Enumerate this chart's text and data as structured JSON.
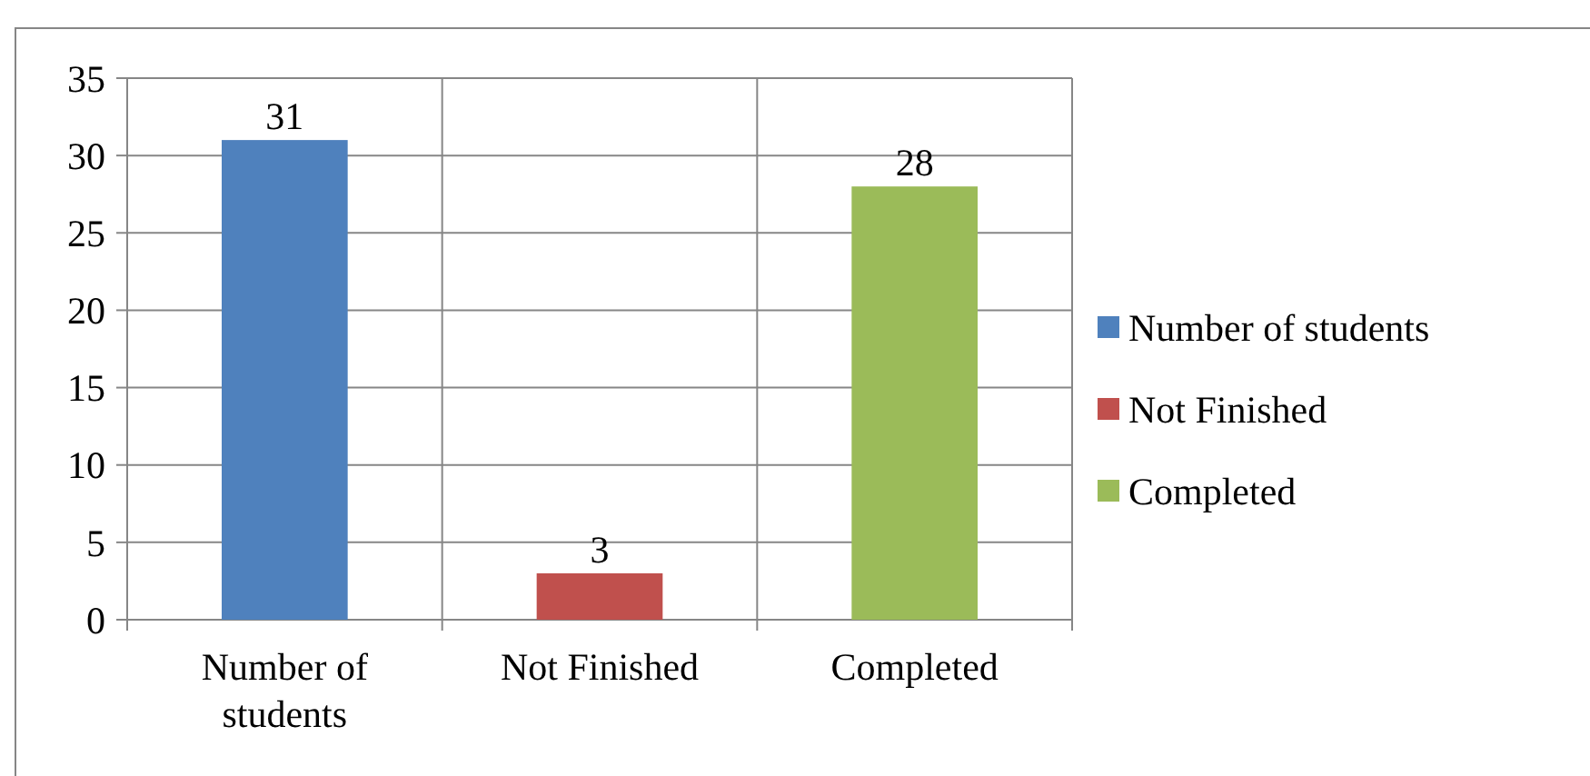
{
  "chart_data": {
    "type": "bar",
    "categories": [
      "Number of students",
      "Not Finished",
      "Completed"
    ],
    "series": [
      {
        "name": "Number of students",
        "color": "#4f81bd",
        "values": [
          31,
          null,
          null
        ]
      },
      {
        "name": "Not Finished",
        "color": "#c0504d",
        "values": [
          null,
          3,
          null
        ]
      },
      {
        "name": "Completed",
        "color": "#9bbb59",
        "values": [
          null,
          null,
          28
        ]
      }
    ],
    "ylim": [
      0,
      35
    ],
    "yticks": [
      0,
      5,
      10,
      15,
      20,
      25,
      30,
      35
    ],
    "grid": true,
    "legend": "right",
    "data_labels": true
  }
}
